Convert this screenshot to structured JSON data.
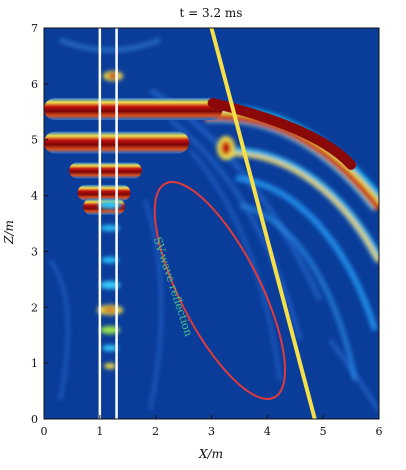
{
  "chart_data": {
    "type": "heatmap",
    "title": "t = 3.2 ms",
    "xlabel": "X/m",
    "ylabel": "Z/m",
    "xlim": [
      0,
      6
    ],
    "ylim": [
      0,
      7
    ],
    "xticks": [
      "0",
      "1",
      "2",
      "3",
      "4",
      "5",
      "6"
    ],
    "yticks": [
      "0",
      "1",
      "2",
      "3",
      "4",
      "5",
      "6",
      "7"
    ],
    "colormap": "jet",
    "background_color": "#0a3c9a",
    "boreholes_x": [
      1.0,
      1.3
    ],
    "interface_line": {
      "from": [
        3.0,
        7.0
      ],
      "to": [
        4.85,
        0.0
      ],
      "color": "#f5e04a"
    },
    "reflection_ellipse": {
      "center": [
        3.15,
        2.3
      ],
      "color": "#e03a3a"
    },
    "annotation": {
      "text": "SV-wave reflection",
      "color": "#49c48a"
    },
    "wavefront_bands": [
      {
        "z": 5.55,
        "x": [
          0.0,
          3.2
        ]
      },
      {
        "z": 4.95,
        "x": [
          0.0,
          2.6
        ]
      },
      {
        "z": 4.45,
        "x": [
          0.45,
          1.75
        ]
      },
      {
        "z": 4.05,
        "x": [
          0.6,
          1.55
        ]
      },
      {
        "z": 3.8,
        "x": [
          0.7,
          1.45
        ]
      }
    ]
  }
}
